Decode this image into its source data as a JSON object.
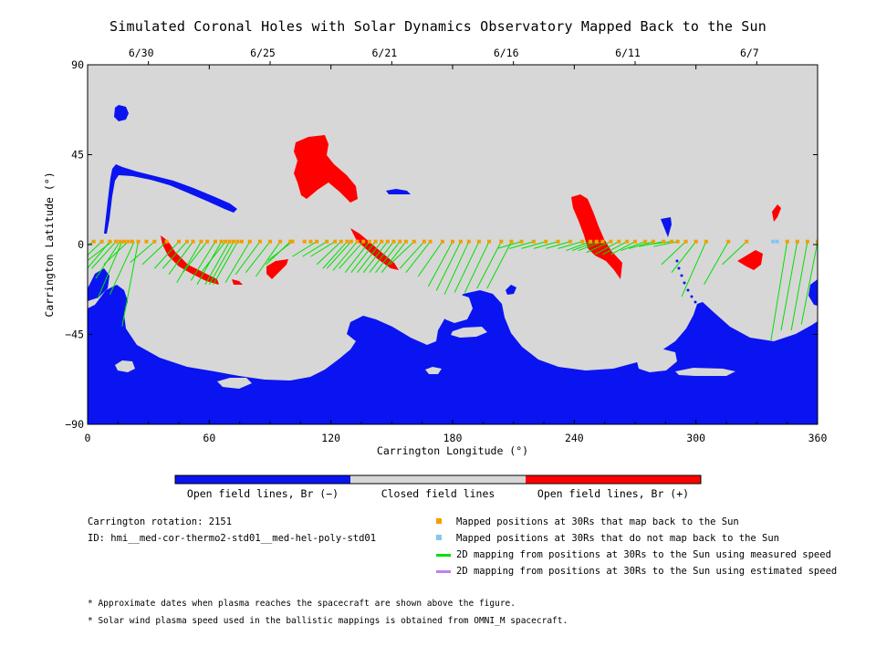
{
  "title": "Simulated Coronal Holes with Solar Dynamics Observatory Mapped Back to the Sun",
  "colors": {
    "closed": "#d7d7d7",
    "open_neg": "#0a14f0",
    "open_pos": "#ff0000",
    "mapped": "#f0a000",
    "not_mapped": "#80c8f0",
    "measured": "#00e000",
    "estimated": "#c080f0"
  },
  "chart_data": {
    "type": "map",
    "title": "Simulated Coronal Holes with Solar Dynamics Observatory Mapped Back to the Sun",
    "xlabel": "Carrington Longitude (°)",
    "ylabel": "Carrington Latitude (°)",
    "xlim": [
      0,
      360
    ],
    "ylim": [
      -90,
      90
    ],
    "x_ticks": [
      0,
      60,
      120,
      180,
      240,
      300,
      360
    ],
    "y_ticks": [
      90,
      45,
      0,
      -45,
      -90
    ],
    "top_axis": {
      "ticks": [
        {
          "label": "6/30",
          "lon": 30
        },
        {
          "label": "6/25",
          "lon": 90
        },
        {
          "label": "6/21",
          "lon": 150
        },
        {
          "label": "6/16",
          "lon": 210
        },
        {
          "label": "6/11",
          "lon": 270
        },
        {
          "label": "6/7",
          "lon": 330
        }
      ]
    },
    "mapped_positions_lon": [
      3,
      7,
      11,
      14,
      16,
      18,
      20,
      22,
      25,
      29,
      33,
      39,
      45,
      49,
      52,
      56,
      59,
      63,
      66,
      68,
      70,
      72,
      74,
      76,
      80,
      85,
      90,
      95,
      100,
      101,
      107,
      110,
      113,
      118,
      122,
      125,
      128,
      130,
      133,
      136,
      139,
      142,
      145,
      148,
      151,
      154,
      157,
      161,
      166,
      169,
      175,
      180,
      184,
      188,
      193,
      198,
      204,
      209,
      214,
      220,
      226,
      232,
      238,
      244,
      248,
      251,
      254,
      258,
      262,
      266,
      270,
      275,
      279,
      284,
      288,
      291,
      295,
      300,
      305,
      316,
      325,
      345,
      350,
      355,
      360
    ],
    "not_mapped_positions_lon": [
      338,
      340
    ],
    "field_lines": [
      [
        3,
        -6
      ],
      [
        7,
        -10
      ],
      [
        11,
        -13
      ],
      [
        12,
        -8
      ],
      [
        14,
        -12
      ],
      [
        16,
        -17
      ],
      [
        17,
        -27
      ],
      [
        20,
        -10
      ],
      [
        25,
        -41
      ],
      [
        23,
        -25
      ],
      [
        33,
        -9
      ],
      [
        39,
        -10
      ],
      [
        45,
        -12
      ],
      [
        49,
        -12
      ],
      [
        52,
        -15
      ],
      [
        56,
        -19
      ],
      [
        59,
        -14
      ],
      [
        63,
        -18
      ],
      [
        66,
        -20
      ],
      [
        68,
        -14
      ],
      [
        70,
        -20
      ],
      [
        72,
        -20
      ],
      [
        74,
        -20
      ],
      [
        80,
        -19
      ],
      [
        85,
        -15
      ],
      [
        90,
        -14
      ],
      [
        95,
        -16
      ],
      [
        100,
        -10
      ],
      [
        101,
        -8
      ],
      [
        113,
        -6
      ],
      [
        118,
        -6
      ],
      [
        122,
        -6
      ],
      [
        125,
        -10
      ],
      [
        128,
        -12
      ],
      [
        130,
        -12
      ],
      [
        133,
        -13
      ],
      [
        136,
        -12
      ],
      [
        139,
        -14
      ],
      [
        142,
        -14
      ],
      [
        145,
        -14
      ],
      [
        148,
        -14
      ],
      [
        151,
        -14
      ],
      [
        154,
        -14
      ],
      [
        157,
        -14
      ],
      [
        161,
        -10
      ],
      [
        166,
        -12
      ],
      [
        169,
        -14
      ],
      [
        175,
        -16
      ],
      [
        180,
        -21
      ],
      [
        184,
        -23
      ],
      [
        188,
        -25
      ],
      [
        193,
        -24
      ],
      [
        198,
        -24
      ],
      [
        204,
        -22
      ],
      [
        209,
        -22
      ],
      [
        214,
        -2
      ],
      [
        220,
        -2
      ],
      [
        226,
        -2
      ],
      [
        232,
        -2
      ],
      [
        238,
        -2
      ],
      [
        244,
        -2
      ],
      [
        248,
        -3
      ],
      [
        251,
        -3
      ],
      [
        254,
        -3
      ],
      [
        258,
        -4
      ],
      [
        262,
        -5
      ],
      [
        266,
        -5
      ],
      [
        270,
        -5
      ],
      [
        275,
        -3
      ],
      [
        279,
        -2
      ],
      [
        284,
        -1
      ],
      [
        288,
        0
      ],
      [
        291,
        -1
      ],
      [
        295,
        -10
      ],
      [
        300,
        -14
      ],
      [
        305,
        -26
      ],
      [
        316,
        -20
      ],
      [
        325,
        -10
      ],
      [
        345,
        -48
      ],
      [
        350,
        -43
      ],
      [
        355,
        -43
      ],
      [
        360,
        -40
      ]
    ]
  },
  "colorbar": {
    "labels": [
      "Open field lines, Br (−)",
      "Closed field lines",
      "Open field lines, Br (+)"
    ]
  },
  "info": {
    "rotation": "Carrington rotation: 2151",
    "id": "ID: hmi__med-cor-thermo2-std01__med-hel-poly-std01"
  },
  "legend": [
    {
      "symbol": "square",
      "color": "#f0a000",
      "text": "Mapped positions at 30Rs that map back to the Sun"
    },
    {
      "symbol": "square",
      "color": "#80c8f0",
      "text": "Mapped positions at 30Rs that do not map back to the Sun"
    },
    {
      "symbol": "line",
      "color": "#00e000",
      "text": "2D mapping from positions at 30Rs to the Sun using measured speed"
    },
    {
      "symbol": "line",
      "color": "#c080f0",
      "text": "2D mapping from positions at 30Rs to the Sun using estimated speed"
    }
  ],
  "notes": [
    "* Approximate dates when plasma reaches the spacecraft are shown above the figure.",
    "* Solar wind plasma speed used in the ballistic mappings is obtained from OMNI_M spacecraft."
  ]
}
